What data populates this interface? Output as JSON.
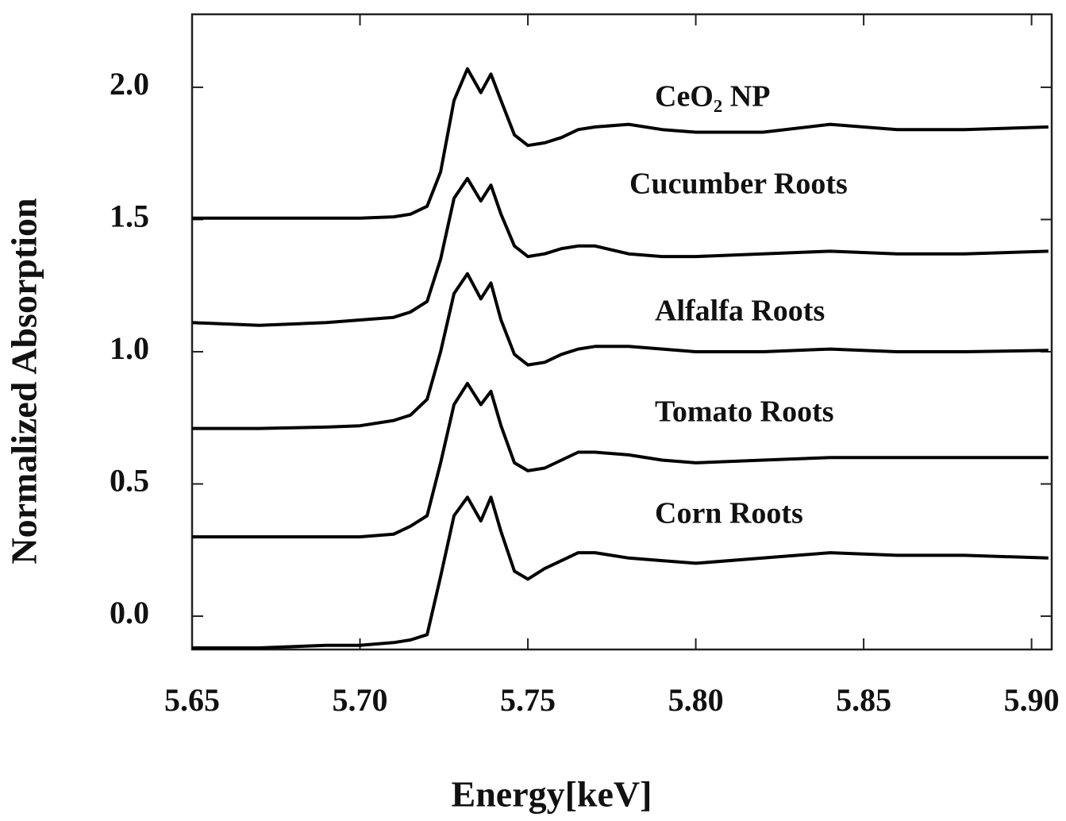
{
  "chart_data": {
    "type": "line",
    "x_label": "Energy[keV]",
    "y_label": "Normalized Absorption",
    "x": [
      5.65,
      5.67,
      5.69,
      5.7,
      5.71,
      5.715,
      5.72,
      5.724,
      5.728,
      5.732,
      5.736,
      5.739,
      5.742,
      5.746,
      5.75,
      5.755,
      5.76,
      5.765,
      5.77,
      5.78,
      5.79,
      5.8,
      5.82,
      5.84,
      5.86,
      5.88,
      5.905
    ],
    "series": [
      {
        "name": "CeO₂ NP",
        "color": "#000000",
        "values": [
          1.505,
          1.505,
          1.505,
          1.505,
          1.51,
          1.52,
          1.55,
          1.68,
          1.95,
          2.07,
          1.98,
          2.05,
          1.95,
          1.82,
          1.78,
          1.79,
          1.81,
          1.84,
          1.85,
          1.86,
          1.84,
          1.83,
          1.83,
          1.86,
          1.84,
          1.84,
          1.85
        ]
      },
      {
        "name": "Cucumber Roots",
        "color": "#000000",
        "values": [
          1.11,
          1.1,
          1.11,
          1.12,
          1.13,
          1.15,
          1.19,
          1.35,
          1.58,
          1.655,
          1.57,
          1.63,
          1.52,
          1.4,
          1.36,
          1.37,
          1.39,
          1.4,
          1.4,
          1.37,
          1.36,
          1.36,
          1.37,
          1.38,
          1.37,
          1.37,
          1.38
        ]
      },
      {
        "name": "Alfalfa Roots",
        "color": "#000000",
        "values": [
          0.71,
          0.71,
          0.715,
          0.72,
          0.74,
          0.76,
          0.82,
          1.0,
          1.22,
          1.295,
          1.2,
          1.26,
          1.12,
          0.99,
          0.95,
          0.96,
          0.99,
          1.01,
          1.02,
          1.02,
          1.01,
          1.0,
          1.0,
          1.01,
          1.0,
          1.0,
          1.005
        ]
      },
      {
        "name": "Tomato Roots",
        "color": "#000000",
        "values": [
          0.3,
          0.3,
          0.3,
          0.3,
          0.31,
          0.34,
          0.38,
          0.58,
          0.8,
          0.88,
          0.8,
          0.85,
          0.72,
          0.58,
          0.55,
          0.56,
          0.59,
          0.62,
          0.62,
          0.61,
          0.59,
          0.58,
          0.59,
          0.6,
          0.6,
          0.6,
          0.6
        ]
      },
      {
        "name": "Corn Roots",
        "color": "#000000",
        "values": [
          -0.12,
          -0.12,
          -0.11,
          -0.11,
          -0.1,
          -0.09,
          -0.07,
          0.15,
          0.38,
          0.45,
          0.36,
          0.45,
          0.32,
          0.17,
          0.14,
          0.18,
          0.21,
          0.24,
          0.24,
          0.22,
          0.21,
          0.2,
          0.22,
          0.24,
          0.23,
          0.23,
          0.22
        ]
      }
    ],
    "xlim": [
      5.65,
      5.906
    ],
    "ylim": [
      -0.126,
      2.276
    ],
    "xticks": [
      5.65,
      {
        "value": 5.7,
        "label": "5.70"
      },
      5.75,
      {
        "value": 5.8,
        "label": "5.80"
      },
      5.85,
      {
        "value": 5.9,
        "label": "5.90"
      }
    ],
    "yticks": [
      {
        "value": 0,
        "label": "0.0"
      },
      0.5,
      {
        "value": 1,
        "label": "1.0"
      },
      1.5,
      {
        "value": 2,
        "label": "2.0"
      }
    ],
    "grid": false
  }
}
